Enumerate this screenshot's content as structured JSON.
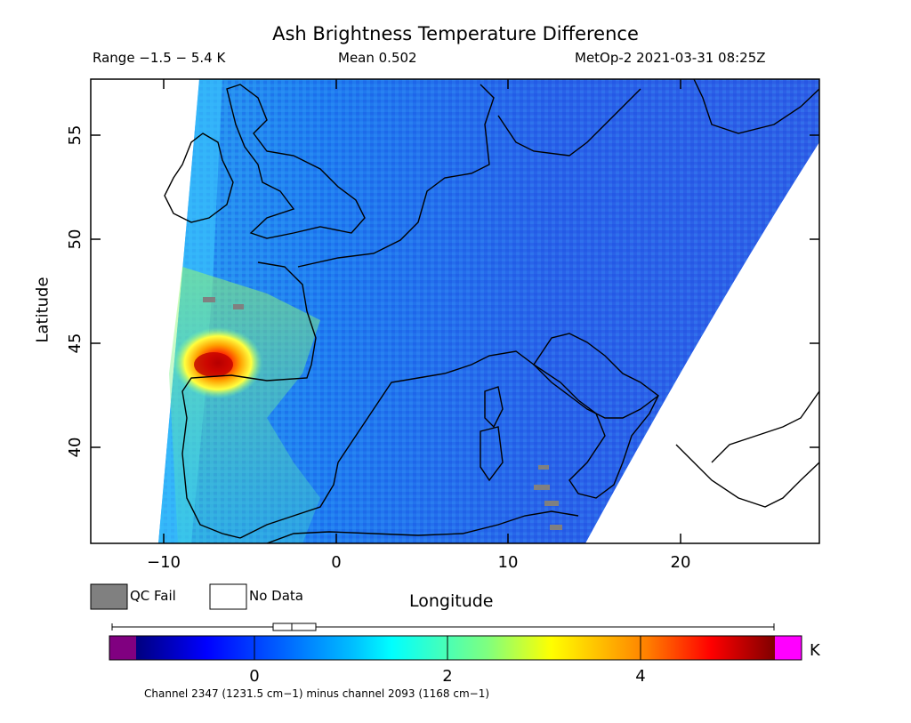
{
  "header": {
    "title": "Ash Brightness Temperature Difference",
    "range": "Range −1.5 − 5.4 K",
    "mean": "Mean 0.502",
    "satellite_time": "MetOp-2 2021-03-31 08:25Z"
  },
  "axes": {
    "xlabel": "Longitude",
    "ylabel": "Latitude",
    "x_ticks": [
      "−10",
      "0",
      "10",
      "20"
    ],
    "y_ticks": [
      "40",
      "45",
      "50",
      "55"
    ],
    "lon_range": [
      -14.5,
      28
    ],
    "lat_range": [
      35.5,
      57.7
    ]
  },
  "legend": {
    "qc_fail": "QC Fail",
    "no_data": "No Data",
    "qc_color": "#808080"
  },
  "colorbar": {
    "units": "K",
    "ticks": [
      "0",
      "2",
      "4"
    ],
    "min": -1.5,
    "max": 5.4,
    "under_color": "#800080",
    "over_color": "#ff00ff"
  },
  "footnote": "Channel 2347 (1231.5 cm−1) minus channel 2093 (1168 cm−1)"
}
